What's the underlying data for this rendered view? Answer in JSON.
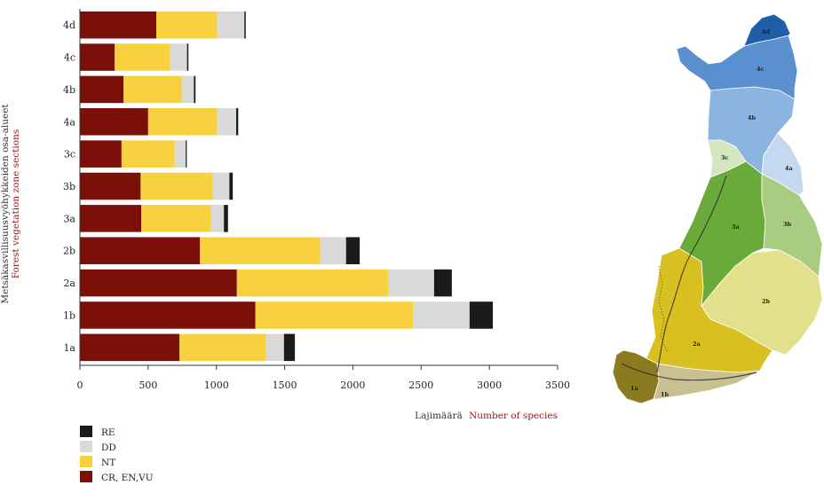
{
  "chart_data": {
    "type": "bar",
    "orientation": "horizontal",
    "stacked": true,
    "ylabel_fi": "Metsäkasvillisuusvyöhykkeiden osa-alueet",
    "ylabel_en": "Forest vegetation zone sections",
    "xlabel_fi": "Lajimäärä",
    "xlabel_en": "Number of species",
    "xlim": [
      0,
      3500
    ],
    "xticks": [
      "0",
      "500",
      "1000",
      "1500",
      "2000",
      "2500",
      "3000",
      "3500"
    ],
    "grid": false,
    "legend_position": "bottom-left",
    "categories": [
      "4d",
      "4c",
      "4b",
      "4a",
      "3c",
      "3b",
      "3a",
      "2b",
      "2a",
      "1b",
      "1a"
    ],
    "series": [
      {
        "name": "CR, EN,VU",
        "color": "#7a1008",
        "values": [
          560,
          255,
          320,
          500,
          305,
          445,
          450,
          880,
          1150,
          1285,
          730
        ]
      },
      {
        "name": "NT",
        "color": "#f7d23e",
        "values": [
          445,
          405,
          425,
          505,
          390,
          530,
          510,
          880,
          1110,
          1155,
          635
        ]
      },
      {
        "name": "DD",
        "color": "#d9d9d9",
        "values": [
          200,
          125,
          90,
          140,
          80,
          120,
          95,
          190,
          335,
          415,
          130
        ]
      },
      {
        "name": "RE",
        "color": "#1b1b1b",
        "values": [
          10,
          10,
          12,
          15,
          8,
          25,
          30,
          100,
          130,
          170,
          80
        ]
      }
    ],
    "legend_order": [
      "RE",
      "DD",
      "NT",
      "CR, EN,VU"
    ]
  },
  "map": {
    "region_labels": [
      "4d",
      "4c",
      "4b",
      "4a",
      "3c",
      "3a",
      "3b",
      "2b",
      "2a",
      "1a",
      "1b"
    ],
    "colors": {
      "4d": "#1f5fa8",
      "4c": "#5a8fd0",
      "4b": "#8cb4e0",
      "4a": "#c4d8f0",
      "3c": "#d4e6c0",
      "3a": "#6aaa3a",
      "3b": "#a8cc80",
      "2b": "#e2e08a",
      "2a": "#d8c020",
      "1a": "#8a7a20",
      "1b": "#c8c090"
    }
  }
}
